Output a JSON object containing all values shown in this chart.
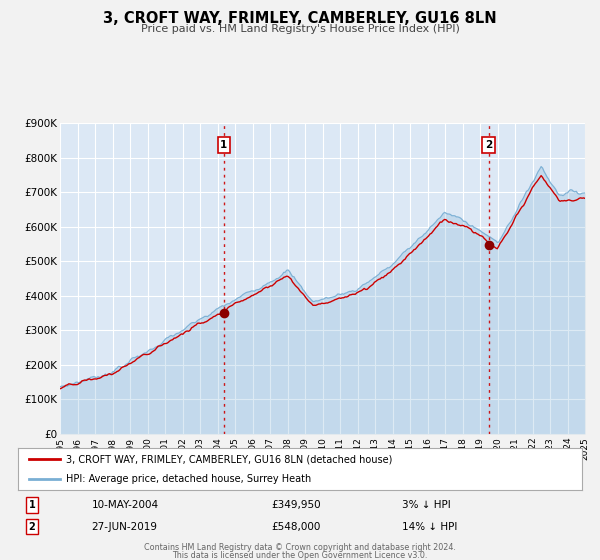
{
  "title": "3, CROFT WAY, FRIMLEY, CAMBERLEY, GU16 8LN",
  "subtitle": "Price paid vs. HM Land Registry's House Price Index (HPI)",
  "bg_color": "#f2f2f2",
  "plot_bg_color": "#dce8f5",
  "grid_color": "#ffffff",
  "line1_color": "#cc0000",
  "line2_color": "#7aafd4",
  "line2_fill_alpha": 0.5,
  "vline_color": "#cc0000",
  "sale1_date": "10-MAY-2004",
  "sale1_price": "£349,950",
  "sale1_hpi": "3% ↓ HPI",
  "sale1_x": 2004.36,
  "sale1_y": 349950,
  "sale2_date": "27-JUN-2019",
  "sale2_price": "£548,000",
  "sale2_hpi": "14% ↓ HPI",
  "sale2_x": 2019.49,
  "sale2_y": 548000,
  "ylim": [
    0,
    900000
  ],
  "xlim": [
    1995,
    2025
  ],
  "yticks": [
    0,
    100000,
    200000,
    300000,
    400000,
    500000,
    600000,
    700000,
    800000,
    900000
  ],
  "ytick_labels": [
    "£0",
    "£100K",
    "£200K",
    "£300K",
    "£400K",
    "£500K",
    "£600K",
    "£700K",
    "£800K",
    "£900K"
  ],
  "footer1": "Contains HM Land Registry data © Crown copyright and database right 2024.",
  "footer2": "This data is licensed under the Open Government Licence v3.0.",
  "legend_label1": "3, CROFT WAY, FRIMLEY, CAMBERLEY, GU16 8LN (detached house)",
  "legend_label2": "HPI: Average price, detached house, Surrey Heath"
}
